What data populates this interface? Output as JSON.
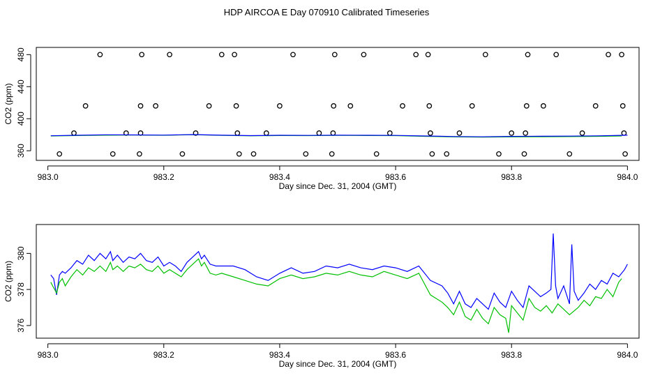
{
  "title": "HDP AIRCOA E  Day 070910  Calibrated Timeseries",
  "chart_data": [
    {
      "type": "scatter",
      "xlabel": "Day since Dec. 31, 2004 (GMT)",
      "ylabel": "CO2 (ppm)",
      "xlim": [
        982.98,
        984.02
      ],
      "ylim": [
        348,
        489
      ],
      "xticks": [
        983.0,
        983.2,
        983.4,
        983.6,
        983.8,
        984.0
      ],
      "xtick_labels": [
        "983.0",
        "983.2",
        "983.4",
        "983.6",
        "983.8",
        "984.0"
      ],
      "yticks": [
        360,
        400,
        440,
        480
      ],
      "ytick_labels": [
        "360",
        "400",
        "440",
        "480"
      ],
      "grid": false,
      "legend": "none",
      "series": [
        {
          "color": "#000000",
          "marker": "circle",
          "points": [
            [
              983.02,
              356
            ],
            [
              983.045,
              382
            ],
            [
              983.065,
              416
            ],
            [
              983.09,
              480
            ],
            [
              983.112,
              356
            ],
            [
              983.135,
              382
            ],
            [
              983.158,
              356
            ],
            [
              983.16,
              382
            ],
            [
              983.16,
              416
            ],
            [
              983.162,
              480
            ],
            [
              983.186,
              416
            ],
            [
              983.21,
              480
            ],
            [
              983.232,
              356
            ],
            [
              983.255,
              382
            ],
            [
              983.278,
              416
            ],
            [
              983.3,
              480
            ],
            [
              983.322,
              480
            ],
            [
              983.325,
              416
            ],
            [
              983.327,
              382
            ],
            [
              983.33,
              356
            ],
            [
              983.355,
              356
            ],
            [
              983.377,
              382
            ],
            [
              983.4,
              416
            ],
            [
              983.423,
              480
            ],
            [
              983.445,
              356
            ],
            [
              983.468,
              382
            ],
            [
              983.49,
              356
            ],
            [
              983.492,
              382
            ],
            [
              983.493,
              416
            ],
            [
              983.495,
              480
            ],
            [
              983.522,
              416
            ],
            [
              983.545,
              480
            ],
            [
              983.567,
              356
            ],
            [
              983.59,
              382
            ],
            [
              983.612,
              416
            ],
            [
              983.635,
              480
            ],
            [
              983.656,
              480
            ],
            [
              983.658,
              416
            ],
            [
              983.66,
              382
            ],
            [
              983.663,
              356
            ],
            [
              983.688,
              356
            ],
            [
              983.71,
              382
            ],
            [
              983.732,
              416
            ],
            [
              983.755,
              480
            ],
            [
              983.778,
              356
            ],
            [
              983.8,
              382
            ],
            [
              983.822,
              356
            ],
            [
              983.824,
              382
            ],
            [
              983.826,
              416
            ],
            [
              983.828,
              480
            ],
            [
              983.855,
              416
            ],
            [
              983.877,
              480
            ],
            [
              983.9,
              356
            ],
            [
              983.922,
              382
            ],
            [
              983.945,
              416
            ],
            [
              983.967,
              480
            ],
            [
              983.99,
              480
            ],
            [
              983.992,
              416
            ],
            [
              983.994,
              382
            ],
            [
              983.996,
              356
            ]
          ]
        },
        {
          "color": "#00c000",
          "line": [
            [
              983.005,
              378.5
            ],
            [
              983.05,
              379.0
            ],
            [
              983.1,
              379.4
            ],
            [
              983.15,
              379.6
            ],
            [
              983.2,
              379.3
            ],
            [
              983.25,
              380.0
            ],
            [
              983.3,
              379.2
            ],
            [
              983.35,
              378.6
            ],
            [
              983.4,
              379.0
            ],
            [
              983.45,
              378.9
            ],
            [
              983.5,
              379.2
            ],
            [
              983.55,
              379.0
            ],
            [
              983.6,
              378.9
            ],
            [
              983.65,
              378.0
            ],
            [
              983.7,
              377.3
            ],
            [
              983.75,
              377.0
            ],
            [
              983.8,
              377.3
            ],
            [
              983.85,
              377.5
            ],
            [
              983.9,
              377.7
            ],
            [
              983.95,
              378.0
            ],
            [
              983.99,
              378.5
            ]
          ]
        },
        {
          "color": "#0000ff",
          "line": [
            [
              983.005,
              378.7
            ],
            [
              983.05,
              379.3
            ],
            [
              983.1,
              379.9
            ],
            [
              983.15,
              379.8
            ],
            [
              983.2,
              379.5
            ],
            [
              983.25,
              380.2
            ],
            [
              983.3,
              379.4
            ],
            [
              983.35,
              378.9
            ],
            [
              983.4,
              379.3
            ],
            [
              983.45,
              379.2
            ],
            [
              983.5,
              379.4
            ],
            [
              983.55,
              379.3
            ],
            [
              983.6,
              379.2
            ],
            [
              983.65,
              378.5
            ],
            [
              983.7,
              377.8
            ],
            [
              983.75,
              377.4
            ],
            [
              983.8,
              377.9
            ],
            [
              983.85,
              378.1
            ],
            [
              983.9,
              378.3
            ],
            [
              983.95,
              378.6
            ],
            [
              984.0,
              379.4
            ]
          ]
        }
      ]
    },
    {
      "type": "line",
      "xlabel": "Day since Dec. 31, 2004 (GMT)",
      "ylabel": "CO2 (ppm)",
      "xlim": [
        982.98,
        984.02
      ],
      "ylim": [
        375.3,
        381.6
      ],
      "xticks": [
        983.0,
        983.2,
        983.4,
        983.6,
        983.8,
        984.0
      ],
      "xtick_labels": [
        "983.0",
        "983.2",
        "983.4",
        "983.6",
        "983.8",
        "984.0"
      ],
      "yticks": [
        376,
        378,
        380
      ],
      "ytick_labels": [
        "376",
        "378",
        "380"
      ],
      "grid": false,
      "legend": "none",
      "series": [
        {
          "color": "#0000ff",
          "x": [
            983.005,
            983.01,
            983.015,
            983.02,
            983.025,
            983.03,
            983.04,
            983.05,
            983.06,
            983.07,
            983.08,
            983.09,
            983.1,
            983.108,
            983.112,
            983.12,
            983.13,
            983.14,
            983.15,
            983.16,
            983.17,
            983.18,
            983.19,
            983.2,
            983.21,
            983.22,
            983.23,
            983.24,
            983.25,
            983.26,
            983.265,
            983.27,
            983.28,
            983.29,
            983.3,
            983.32,
            983.34,
            983.36,
            983.38,
            983.4,
            983.42,
            983.44,
            983.46,
            983.48,
            983.5,
            983.52,
            983.54,
            983.56,
            983.58,
            983.6,
            983.62,
            983.64,
            983.66,
            983.68,
            983.69,
            983.7,
            983.71,
            983.72,
            983.73,
            983.74,
            983.75,
            983.76,
            983.77,
            983.78,
            983.79,
            983.8,
            983.81,
            983.82,
            983.83,
            983.84,
            983.85,
            983.86,
            983.868,
            983.872,
            983.876,
            983.88,
            983.89,
            983.9,
            983.904,
            983.908,
            983.915,
            983.925,
            983.935,
            983.945,
            983.955,
            983.965,
            983.975,
            983.985,
            983.995,
            984.0
          ],
          "y": [
            378.8,
            378.6,
            377.7,
            378.8,
            379.0,
            378.9,
            379.2,
            379.6,
            379.4,
            379.9,
            379.6,
            380.0,
            379.7,
            380.1,
            379.6,
            379.9,
            379.5,
            379.8,
            379.7,
            380.0,
            379.6,
            379.5,
            379.8,
            379.3,
            379.5,
            379.3,
            379.0,
            379.5,
            379.8,
            380.1,
            379.7,
            379.9,
            379.4,
            379.3,
            379.3,
            379.3,
            379.1,
            378.7,
            378.5,
            378.9,
            379.2,
            378.9,
            379.0,
            379.3,
            379.2,
            379.4,
            379.2,
            379.1,
            379.3,
            379.2,
            379.0,
            379.3,
            378.5,
            378.2,
            377.8,
            377.2,
            377.9,
            377.2,
            377.0,
            377.5,
            377.2,
            376.9,
            377.8,
            377.3,
            377.0,
            377.9,
            377.4,
            377.0,
            378.2,
            377.9,
            377.6,
            377.8,
            378.0,
            381.1,
            378.2,
            377.5,
            378.2,
            377.2,
            380.5,
            377.9,
            377.4,
            377.8,
            378.3,
            378.0,
            378.5,
            378.3,
            378.9,
            378.7,
            379.1,
            379.4
          ]
        },
        {
          "color": "#00c000",
          "x": [
            983.005,
            983.01,
            983.015,
            983.02,
            983.025,
            983.03,
            983.04,
            983.05,
            983.06,
            983.07,
            983.08,
            983.09,
            983.1,
            983.108,
            983.112,
            983.12,
            983.13,
            983.14,
            983.15,
            983.16,
            983.17,
            983.18,
            983.19,
            983.2,
            983.21,
            983.22,
            983.23,
            983.24,
            983.25,
            983.26,
            983.265,
            983.27,
            983.28,
            983.29,
            983.3,
            983.32,
            983.34,
            983.36,
            983.38,
            983.4,
            983.42,
            983.44,
            983.46,
            983.48,
            983.5,
            983.52,
            983.54,
            983.56,
            983.58,
            983.6,
            983.62,
            983.64,
            983.66,
            983.68,
            983.69,
            983.7,
            983.71,
            983.72,
            983.73,
            983.74,
            983.75,
            983.76,
            983.77,
            983.78,
            983.79,
            983.795,
            983.8,
            983.81,
            983.82,
            983.83,
            983.84,
            983.85,
            983.86,
            983.87,
            983.88,
            983.89,
            983.9,
            983.915,
            983.925,
            983.935,
            983.945,
            983.955,
            983.965,
            983.975,
            983.985,
            983.99
          ],
          "y": [
            378.4,
            378.1,
            377.8,
            378.4,
            378.6,
            378.2,
            378.7,
            379.1,
            378.8,
            379.2,
            379.0,
            379.3,
            379.0,
            379.5,
            379.1,
            379.3,
            379.0,
            379.3,
            379.2,
            379.4,
            379.1,
            379.0,
            379.3,
            378.9,
            379.1,
            378.9,
            378.7,
            379.1,
            379.4,
            379.7,
            379.3,
            379.5,
            378.9,
            378.8,
            378.9,
            378.7,
            378.5,
            378.3,
            378.2,
            378.6,
            378.8,
            378.6,
            378.7,
            378.9,
            378.8,
            379.0,
            378.8,
            378.7,
            379.0,
            378.8,
            378.6,
            378.9,
            377.7,
            377.3,
            377.0,
            376.6,
            377.3,
            376.5,
            376.3,
            376.9,
            376.4,
            376.1,
            377.0,
            376.6,
            376.4,
            375.6,
            377.1,
            376.7,
            376.3,
            377.5,
            377.0,
            376.8,
            377.1,
            376.7,
            377.2,
            376.9,
            376.6,
            377.0,
            377.4,
            377.1,
            377.6,
            377.5,
            378.0,
            377.6,
            378.4,
            378.6
          ]
        }
      ]
    }
  ]
}
